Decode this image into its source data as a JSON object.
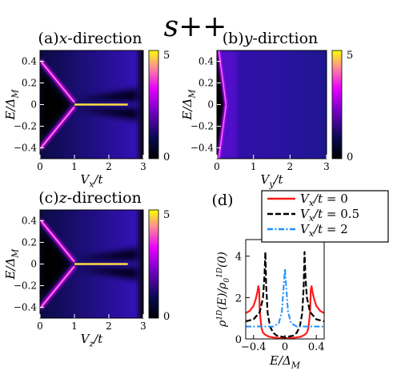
{
  "figure_title": "s++",
  "colors": {
    "line_x0": "#ff1a1a",
    "line_x05": "#000000",
    "line_x2": "#1e90ff"
  },
  "chart_data": [
    {
      "panel": "(a)",
      "type": "heatmap",
      "title": "(a)x-direction",
      "xlabel": "Vx/t",
      "ylabel": "E/ΔM",
      "xlim": [
        0,
        3
      ],
      "ylim": [
        -0.5,
        0.5
      ],
      "xticks": [
        "0",
        "1",
        "2",
        "3"
      ],
      "yticks": [
        "0.4",
        "0.2",
        "0",
        "-0.2",
        "-0.4"
      ],
      "colorbar": {
        "min": 0,
        "max": 5,
        "ticks": [
          "5",
          "0"
        ]
      },
      "features": [
        {
          "name": "upper-branch",
          "points": [
            [
              0,
              0.41
            ],
            [
              1.0,
              0.02
            ]
          ]
        },
        {
          "name": "lower-branch",
          "points": [
            [
              0,
              -0.41
            ],
            [
              1.0,
              -0.02
            ]
          ]
        },
        {
          "name": "zero-energy-peak",
          "points": [
            [
              1.0,
              0
            ],
            [
              2.55,
              0
            ]
          ],
          "intensity": 5
        }
      ]
    },
    {
      "panel": "(b)",
      "type": "heatmap",
      "title": "(b)y-dirction",
      "xlabel": "Vy/t",
      "ylabel": "E/ΔM",
      "xlim": [
        0,
        3
      ],
      "ylim": [
        -0.5,
        0.5
      ],
      "xticks": [
        "0",
        "1",
        "2",
        "3"
      ],
      "yticks": [
        "0.4",
        "0.2",
        "0",
        "-0.2",
        "-0.4"
      ],
      "colorbar": {
        "min": 0,
        "max": 5,
        "ticks": [
          "5",
          "0"
        ]
      },
      "features": [
        {
          "name": "upper-edge",
          "points": [
            [
              0.25,
              0
            ],
            [
              0.05,
              0.5
            ]
          ]
        },
        {
          "name": "lower-edge",
          "points": [
            [
              0.25,
              0
            ],
            [
              0.05,
              -0.5
            ]
          ]
        }
      ]
    },
    {
      "panel": "(c)",
      "type": "heatmap",
      "title": "(c)z-direction",
      "xlabel": "Vz/t",
      "ylabel": "E/ΔM",
      "xlim": [
        0,
        3
      ],
      "ylim": [
        -0.5,
        0.5
      ],
      "xticks": [
        "0",
        "1",
        "2",
        "3"
      ],
      "yticks": [
        "0.4",
        "0.2",
        "0",
        "-0.2",
        "-0.4"
      ],
      "colorbar": {
        "min": 0,
        "max": 5,
        "ticks": [
          "5",
          "0"
        ]
      },
      "features": [
        {
          "name": "upper-branch",
          "points": [
            [
              0,
              0.41
            ],
            [
              1.0,
              0.02
            ]
          ]
        },
        {
          "name": "lower-branch",
          "points": [
            [
              0,
              -0.41
            ],
            [
              1.0,
              -0.02
            ]
          ]
        },
        {
          "name": "zero-energy-peak",
          "points": [
            [
              1.0,
              0
            ],
            [
              2.55,
              0
            ]
          ],
          "intensity": 5
        }
      ]
    },
    {
      "panel": "(d)",
      "type": "line",
      "title": "(d)",
      "xlabel": "E/ΔM",
      "ylabel": "ρ1D(E)/ρ01D(0)",
      "xlim": [
        -0.5,
        0.5
      ],
      "ylim": [
        0,
        4.8
      ],
      "xticks": [
        "-0.4",
        "0",
        "0.4"
      ],
      "yticks": [
        "0",
        "2",
        "4"
      ],
      "legend": "top-right",
      "series": [
        {
          "name": "Vx/t = 0",
          "style": "solid",
          "color": "#ff1a1a",
          "x": [
            -0.5,
            -0.45,
            -0.4,
            -0.37,
            -0.35,
            -0.34,
            -0.33,
            -0.32,
            -0.3,
            -0.28,
            -0.25,
            -0.2,
            -0.1,
            0,
            0.1,
            0.2,
            0.25,
            0.28,
            0.3,
            0.32,
            0.33,
            0.34,
            0.35,
            0.37,
            0.4,
            0.45,
            0.5
          ],
          "y": [
            1.25,
            1.35,
            1.6,
            1.95,
            2.3,
            2.55,
            2.4,
            1.3,
            0.55,
            0.3,
            0.2,
            0.1,
            0.05,
            0.03,
            0.05,
            0.1,
            0.2,
            0.3,
            0.55,
            1.3,
            2.4,
            2.55,
            2.3,
            1.95,
            1.6,
            1.35,
            1.25
          ]
        },
        {
          "name": "Vx/t = 0.5",
          "style": "dashed",
          "color": "#000000",
          "x": [
            -0.5,
            -0.4,
            -0.32,
            -0.28,
            -0.26,
            -0.25,
            -0.245,
            -0.24,
            -0.22,
            -0.19,
            -0.15,
            -0.1,
            0,
            0.1,
            0.15,
            0.19,
            0.22,
            0.24,
            0.245,
            0.25,
            0.26,
            0.28,
            0.32,
            0.4,
            0.5
          ],
          "y": [
            0.85,
            0.95,
            1.3,
            2.0,
            3.1,
            4.2,
            3.5,
            2.6,
            1.25,
            0.6,
            0.3,
            0.15,
            0.08,
            0.15,
            0.3,
            0.6,
            1.25,
            2.6,
            3.5,
            4.2,
            3.1,
            2.0,
            1.3,
            0.95,
            0.85
          ]
        },
        {
          "name": "Vx/t = 2",
          "style": "dashdot",
          "color": "#1e90ff",
          "x": [
            -0.5,
            -0.3,
            -0.15,
            -0.08,
            -0.04,
            -0.02,
            0,
            0.02,
            0.04,
            0.08,
            0.15,
            0.3,
            0.5
          ],
          "y": [
            0.6,
            0.6,
            0.6,
            0.75,
            1.3,
            2.3,
            3.4,
            2.3,
            1.3,
            0.75,
            0.6,
            0.6,
            0.6
          ]
        }
      ]
    }
  ]
}
